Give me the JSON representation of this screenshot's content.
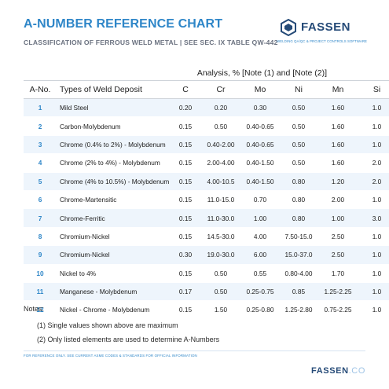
{
  "header": {
    "title": "A-NUMBER REFERENCE CHART",
    "subtitle": "CLASSIFICATION OF FERROUS WELD METAL | SEE SEC. IX TABLE QW-442"
  },
  "logo": {
    "name": "FASSEN",
    "tagline": "WELDING QA/QC & PROJECT CONTROLS SOFTWARE",
    "icon": "fassen-logo-icon"
  },
  "table": {
    "analysis_header": "Analysis, % [Note (1) and [Note (2)]",
    "columns": [
      "A-No.",
      "Types of Weld Deposit",
      "C",
      "Cr",
      "Mo",
      "Ni",
      "Mn",
      "Si"
    ],
    "rows": [
      [
        "1",
        "Mild Steel",
        "0.20",
        "0.20",
        "0.30",
        "0.50",
        "1.60",
        "1.0"
      ],
      [
        "2",
        "Carbon-Molybdenum",
        "0.15",
        "0.50",
        "0.40-0.65",
        "0.50",
        "1.60",
        "1.0"
      ],
      [
        "3",
        "Chrome (0.4% to 2%) - Molybdenum",
        "0.15",
        "0.40-2.00",
        "0.40-0.65",
        "0.50",
        "1.60",
        "1.0"
      ],
      [
        "4",
        "Chrome (2% to 4%) - Molybdenum",
        "0.15",
        "2.00-4.00",
        "0.40-1.50",
        "0.50",
        "1.60",
        "2.0"
      ],
      [
        "5",
        "Chrome (4% to 10.5%) - Molybdenum",
        "0.15",
        "4.00-10.5",
        "0.40-1.50",
        "0.80",
        "1.20",
        "2.0"
      ],
      [
        "6",
        "Chrome-Martensitic",
        "0.15",
        "11.0-15.0",
        "0.70",
        "0.80",
        "2.00",
        "1.0"
      ],
      [
        "7",
        "Chrome-Ferritic",
        "0.15",
        "11.0-30.0",
        "1.00",
        "0.80",
        "1.00",
        "3.0"
      ],
      [
        "8",
        "Chromium-Nickel",
        "0.15",
        "14.5-30.0",
        "4.00",
        "7.50-15.0",
        "2.50",
        "1.0"
      ],
      [
        "9",
        "Chromium-Nickel",
        "0.30",
        "19.0-30.0",
        "6.00",
        "15.0-37.0",
        "2.50",
        "1.0"
      ],
      [
        "10",
        "Nickel to 4%",
        "0.15",
        "0.50",
        "0.55",
        "0.80-4.00",
        "1.70",
        "1.0"
      ],
      [
        "11",
        "Manganese - Molybdenum",
        "0.17",
        "0.50",
        "0.25-0.75",
        "0.85",
        "1.25-2.25",
        "1.0"
      ],
      [
        "12",
        "Nickel - Chrome - Molybdenum",
        "0.15",
        "1.50",
        "0.25-0.80",
        "1.25-2.80",
        "0.75-2.25",
        "1.0"
      ]
    ]
  },
  "notes": {
    "title": "Notes:",
    "items": [
      "(1) Single values shown above are maximum",
      "(2) Only listed elements are used to determine A-Numbers"
    ]
  },
  "footer": {
    "disclaimer": "FOR REFERENCE ONLY. SEE CURRENT ASME CODES & STANDARDS FOR OFFICIAL INFORMATION",
    "brand": "FASSEN",
    "brand_suffix": ".CO"
  },
  "colors": {
    "accent": "#2e86c8",
    "brand_dark": "#264b78",
    "row_stripe": "#eef5fc",
    "subtitle_gray": "#6b7280"
  }
}
